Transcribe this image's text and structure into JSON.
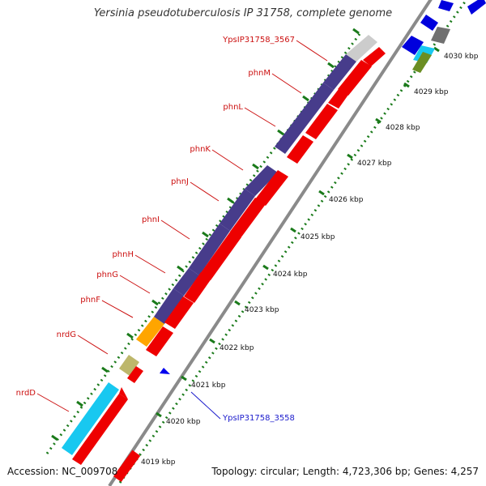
{
  "title": "Yersinia pseudotuberculosis IP 31758, complete genome",
  "footer": {
    "accession": "Accession: NC_009708",
    "summary": "Topology: circular; Length: 4,723,306 bp; Genes: 4,257"
  },
  "colors": {
    "gene_label": "#cc1111",
    "highlight_label": "#1a1acc",
    "tick": "#1a7a1a",
    "backbone": "#8a8a8a"
  },
  "scale_ticks": [
    "4019 kbp",
    "4020 kbp",
    "4021 kbp",
    "4022 kbp",
    "4023 kbp",
    "4024 kbp",
    "4025 kbp",
    "4026 kbp",
    "4027 kbp",
    "4028 kbp",
    "4029 kbp",
    "4030 kbp"
  ],
  "genes": [
    {
      "name": "nrdD",
      "strand": "reverse",
      "color": "#18c8f0"
    },
    {
      "name": "nrdG",
      "strand": "reverse",
      "color": "#bdb76b"
    },
    {
      "name": "phnF",
      "strand": "reverse",
      "color": "#ffa500"
    },
    {
      "name": "phnG",
      "strand": "reverse",
      "color": "#473c8b"
    },
    {
      "name": "phnH",
      "strand": "reverse",
      "color": "#473c8b"
    },
    {
      "name": "phnI",
      "strand": "reverse",
      "color": "#473c8b"
    },
    {
      "name": "phnJ",
      "strand": "reverse",
      "color": "#473c8b"
    },
    {
      "name": "phnK",
      "strand": "reverse",
      "color": "#473c8b"
    },
    {
      "name": "phnL",
      "strand": "reverse",
      "color": "#473c8b"
    },
    {
      "name": "phnM",
      "strand": "reverse",
      "color": "#473c8b"
    },
    {
      "name": "YpsIP31758_3567",
      "strand": "reverse",
      "color": "#cccccc"
    },
    {
      "name": "YpsIP31758_3558",
      "strand": "forward",
      "color": "#0000ee"
    }
  ]
}
